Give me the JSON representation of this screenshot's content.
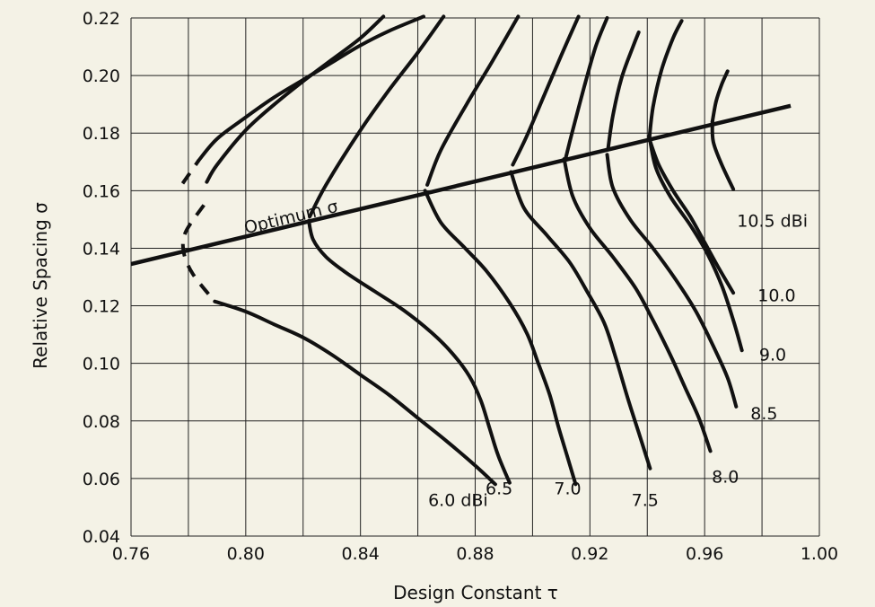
{
  "chart_data": {
    "type": "line",
    "xlabel": "Design Constant τ",
    "ylabel": "Relative Spacing σ",
    "xlim": [
      0.76,
      1.0
    ],
    "ylim": [
      0.04,
      0.22
    ],
    "xticks": [
      0.76,
      0.8,
      0.84,
      0.88,
      0.92,
      0.96,
      1.0
    ],
    "xtick_labels": [
      "0.76",
      "0.80",
      "0.84",
      "0.88",
      "0.92",
      "0.96",
      "1.00"
    ],
    "yticks": [
      0.04,
      0.06,
      0.08,
      0.1,
      0.12,
      0.14,
      0.16,
      0.18,
      0.2,
      0.22
    ],
    "ytick_labels": [
      "0.04",
      "0.06",
      "0.08",
      "0.10",
      "0.12",
      "0.14",
      "0.16",
      "0.18",
      "0.20",
      "0.22"
    ],
    "grid": true,
    "optimum_line": {
      "label": "Optimum σ",
      "points": [
        [
          0.76,
          0.1345
        ],
        [
          0.99,
          0.1895
        ]
      ]
    },
    "series": [
      {
        "label": "6.0 dBi",
        "solid_upper": [
          [
            0.7836,
            0.1705
          ],
          [
            0.79,
            0.178
          ],
          [
            0.8,
            0.1855
          ],
          [
            0.81,
            0.1925
          ],
          [
            0.82,
            0.1985
          ],
          [
            0.83,
            0.2045
          ],
          [
            0.84,
            0.2105
          ],
          [
            0.85,
            0.2155
          ],
          [
            0.862,
            0.2205
          ]
        ],
        "dash": [
          [
            0.778,
            0.1625
          ],
          [
            0.7836,
            0.1705
          ]
        ],
        "dash_mid": [
          [
            0.7854,
            0.155
          ],
          [
            0.779,
            0.1455
          ],
          [
            0.7784,
            0.1385
          ],
          [
            0.7816,
            0.131
          ],
          [
            0.7892,
            0.1215
          ]
        ],
        "solid_lower": [
          [
            0.7892,
            0.1215
          ],
          [
            0.8,
            0.118
          ],
          [
            0.81,
            0.1135
          ],
          [
            0.82,
            0.109
          ],
          [
            0.83,
            0.103
          ],
          [
            0.84,
            0.096
          ],
          [
            0.85,
            0.089
          ],
          [
            0.86,
            0.081
          ],
          [
            0.87,
            0.073
          ],
          [
            0.88,
            0.0645
          ],
          [
            0.887,
            0.058
          ]
        ]
      },
      {
        "label": "6.5",
        "solid_upper": [
          [
            0.7864,
            0.163
          ],
          [
            0.79,
            0.169
          ],
          [
            0.8,
            0.181
          ],
          [
            0.81,
            0.19
          ],
          [
            0.82,
            0.198
          ],
          [
            0.83,
            0.2055
          ],
          [
            0.84,
            0.213
          ],
          [
            0.848,
            0.2205
          ]
        ],
        "solid_lower": [
          [
            0.822,
            0.1495
          ],
          [
            0.8235,
            0.143
          ],
          [
            0.828,
            0.137
          ],
          [
            0.835,
            0.1315
          ],
          [
            0.845,
            0.125
          ],
          [
            0.855,
            0.1185
          ],
          [
            0.865,
            0.1105
          ],
          [
            0.872,
            0.1035
          ],
          [
            0.878,
            0.0955
          ],
          [
            0.882,
            0.087
          ],
          [
            0.885,
            0.0775
          ],
          [
            0.888,
            0.068
          ],
          [
            0.892,
            0.0585
          ]
        ]
      },
      {
        "label": "7.0",
        "upper": [
          [
            0.8223,
            0.151
          ],
          [
            0.828,
            0.162
          ],
          [
            0.84,
            0.181
          ],
          [
            0.85,
            0.195
          ],
          [
            0.86,
            0.208
          ],
          [
            0.869,
            0.2205
          ]
        ],
        "lower": [
          [
            0.8625,
            0.16
          ],
          [
            0.868,
            0.149
          ],
          [
            0.876,
            0.1405
          ],
          [
            0.884,
            0.132
          ],
          [
            0.892,
            0.121
          ],
          [
            0.898,
            0.1105
          ],
          [
            0.902,
            0.1
          ],
          [
            0.906,
            0.089
          ],
          [
            0.909,
            0.078
          ],
          [
            0.912,
            0.068
          ],
          [
            0.915,
            0.058
          ]
        ]
      },
      {
        "label": "7.5",
        "upper": [
          [
            0.8633,
            0.162
          ],
          [
            0.868,
            0.174
          ],
          [
            0.877,
            0.19
          ],
          [
            0.886,
            0.205
          ],
          [
            0.895,
            0.2205
          ]
        ],
        "lower": [
          [
            0.8925,
            0.1665
          ],
          [
            0.897,
            0.154
          ],
          [
            0.905,
            0.1445
          ],
          [
            0.913,
            0.135
          ],
          [
            0.919,
            0.125
          ],
          [
            0.925,
            0.114
          ],
          [
            0.929,
            0.102
          ],
          [
            0.933,
            0.0885
          ],
          [
            0.937,
            0.076
          ],
          [
            0.941,
            0.0635
          ]
        ]
      },
      {
        "label": "8.0",
        "upper": [
          [
            0.8931,
            0.169
          ],
          [
            0.898,
            0.179
          ],
          [
            0.904,
            0.193
          ],
          [
            0.91,
            0.207
          ],
          [
            0.916,
            0.2205
          ]
        ],
        "lower": [
          [
            0.911,
            0.171
          ],
          [
            0.914,
            0.158
          ],
          [
            0.92,
            0.147
          ],
          [
            0.928,
            0.137
          ],
          [
            0.936,
            0.126
          ],
          [
            0.942,
            0.115
          ],
          [
            0.948,
            0.103
          ],
          [
            0.953,
            0.092
          ],
          [
            0.958,
            0.081
          ],
          [
            0.962,
            0.0695
          ]
        ]
      },
      {
        "label": "8.5",
        "upper": [
          [
            0.9116,
            0.1715
          ],
          [
            0.914,
            0.181
          ],
          [
            0.918,
            0.196
          ],
          [
            0.922,
            0.21
          ],
          [
            0.926,
            0.22
          ]
        ],
        "lower": [
          [
            0.926,
            0.1725
          ],
          [
            0.928,
            0.161
          ],
          [
            0.934,
            0.15
          ],
          [
            0.942,
            0.14
          ],
          [
            0.95,
            0.129
          ],
          [
            0.957,
            0.118
          ],
          [
            0.963,
            0.106
          ],
          [
            0.968,
            0.095
          ],
          [
            0.971,
            0.085
          ]
        ]
      },
      {
        "label": "9.0",
        "upper": [
          [
            0.9263,
            0.1745
          ],
          [
            0.928,
            0.186
          ],
          [
            0.931,
            0.199
          ],
          [
            0.935,
            0.21
          ],
          [
            0.937,
            0.215
          ]
        ],
        "lower": [
          [
            0.9407,
            0.179
          ],
          [
            0.943,
            0.168
          ],
          [
            0.948,
            0.158
          ],
          [
            0.955,
            0.148
          ],
          [
            0.961,
            0.138
          ],
          [
            0.966,
            0.127
          ],
          [
            0.97,
            0.115
          ],
          [
            0.973,
            0.1045
          ]
        ]
      },
      {
        "label": "10.0",
        "upper": [
          [
            0.9407,
            0.178
          ],
          [
            0.942,
            0.189
          ],
          [
            0.945,
            0.202
          ],
          [
            0.949,
            0.213
          ],
          [
            0.952,
            0.219
          ]
        ],
        "lower": [
          [
            0.9407,
            0.178
          ],
          [
            0.944,
            0.169
          ],
          [
            0.949,
            0.16
          ],
          [
            0.955,
            0.151
          ],
          [
            0.96,
            0.142
          ],
          [
            0.965,
            0.133
          ],
          [
            0.97,
            0.1245
          ]
        ]
      },
      {
        "label": "10.5 dBi",
        "upper": [
          [
            0.9627,
            0.184
          ],
          [
            0.964,
            0.191
          ],
          [
            0.966,
            0.197
          ],
          [
            0.968,
            0.2015
          ]
        ],
        "lower": [
          [
            0.9627,
            0.184
          ],
          [
            0.963,
            0.177
          ],
          [
            0.966,
            0.169
          ],
          [
            0.97,
            0.1605
          ]
        ]
      }
    ],
    "curve_labels": [
      {
        "text": "6.0 dBi",
        "at": [
          0.8636,
          0.0505
        ]
      },
      {
        "text": "6.5",
        "at": [
          0.8836,
          0.0545
        ]
      },
      {
        "text": "7.0",
        "at": [
          0.9075,
          0.0545
        ]
      },
      {
        "text": "7.5",
        "at": [
          0.9345,
          0.0505
        ]
      },
      {
        "text": "8.0",
        "at": [
          0.9625,
          0.0585
        ]
      },
      {
        "text": "8.5",
        "at": [
          0.976,
          0.0805
        ]
      },
      {
        "text": "9.0",
        "at": [
          0.979,
          0.101
        ]
      },
      {
        "text": "10.0",
        "at": [
          0.9785,
          0.1215
        ]
      },
      {
        "text": "10.5 dBi",
        "at": [
          0.9713,
          0.1475
        ]
      }
    ],
    "optimum_label_at": [
      0.8,
      0.145
    ]
  }
}
